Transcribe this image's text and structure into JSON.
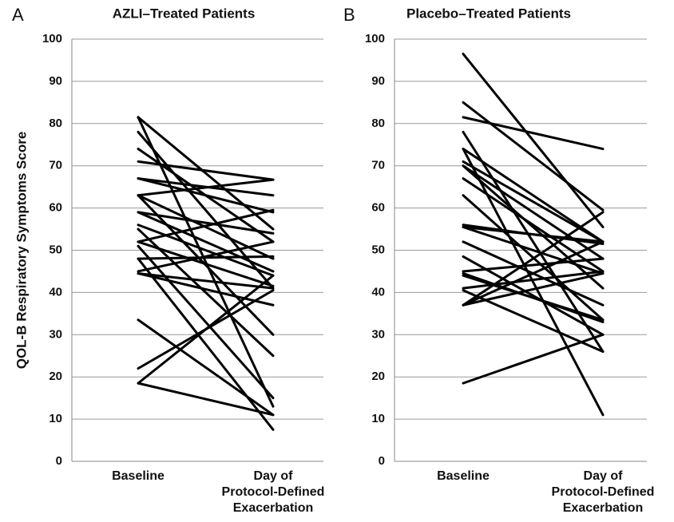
{
  "chart_data": [
    {
      "type": "line",
      "panel_label": "A",
      "title": "AZLI–Treated Patients",
      "ylabel": "QOL-B Respiratory Symptoms Score",
      "categories": [
        "Baseline",
        "Day of\nProtocol-Defined\nExacerbation"
      ],
      "ylim": [
        0,
        100
      ],
      "yticks": [
        0,
        10,
        20,
        30,
        40,
        50,
        60,
        70,
        80,
        90,
        100
      ],
      "grid": true,
      "color": "#000000",
      "series": [
        {
          "values": [
            81.5,
            55
          ]
        },
        {
          "values": [
            81.5,
            13
          ]
        },
        {
          "values": [
            78,
            41
          ]
        },
        {
          "values": [
            74,
            52
          ]
        },
        {
          "values": [
            71,
            66.7
          ]
        },
        {
          "values": [
            67,
            59
          ]
        },
        {
          "values": [
            67,
            63
          ]
        },
        {
          "values": [
            63,
            66.7
          ]
        },
        {
          "values": [
            63,
            48
          ]
        },
        {
          "values": [
            63,
            30
          ]
        },
        {
          "values": [
            59,
            54
          ]
        },
        {
          "values": [
            59,
            45
          ]
        },
        {
          "values": [
            56,
            44
          ]
        },
        {
          "values": [
            55,
            25
          ]
        },
        {
          "values": [
            52,
            59.5
          ]
        },
        {
          "values": [
            52,
            41.5
          ]
        },
        {
          "values": [
            51,
            15
          ]
        },
        {
          "values": [
            48,
            48.5
          ]
        },
        {
          "values": [
            48,
            7.5
          ]
        },
        {
          "values": [
            45,
            52
          ]
        },
        {
          "values": [
            44.5,
            41
          ]
        },
        {
          "values": [
            44.5,
            37
          ]
        },
        {
          "values": [
            33.5,
            11
          ]
        },
        {
          "values": [
            22,
            40.5
          ]
        },
        {
          "values": [
            18.5,
            44
          ]
        },
        {
          "values": [
            18.5,
            11
          ]
        }
      ]
    },
    {
      "type": "line",
      "panel_label": "B",
      "title": "Placebo–Treated Patients",
      "categories": [
        "Baseline",
        "Day of\nProtocol-Defined\nExacerbation"
      ],
      "ylim": [
        0,
        100
      ],
      "yticks": [
        0,
        10,
        20,
        30,
        40,
        50,
        60,
        70,
        80,
        90,
        100
      ],
      "grid": true,
      "color": "#000000",
      "series": [
        {
          "values": [
            96.5,
            55.5
          ]
        },
        {
          "values": [
            85,
            59.5
          ]
        },
        {
          "values": [
            81.5,
            74
          ]
        },
        {
          "values": [
            78,
            26
          ]
        },
        {
          "values": [
            74,
            52
          ]
        },
        {
          "values": [
            74,
            11
          ]
        },
        {
          "values": [
            71,
            52
          ]
        },
        {
          "values": [
            70,
            48
          ]
        },
        {
          "values": [
            70,
            41
          ]
        },
        {
          "values": [
            67,
            45
          ]
        },
        {
          "values": [
            63,
            33.5
          ]
        },
        {
          "values": [
            56,
            51.5
          ]
        },
        {
          "values": [
            55.5,
            52
          ]
        },
        {
          "values": [
            55.5,
            44.5
          ]
        },
        {
          "values": [
            52,
            37
          ]
        },
        {
          "values": [
            48.5,
            30
          ]
        },
        {
          "values": [
            45,
            48
          ]
        },
        {
          "values": [
            44.5,
            33
          ]
        },
        {
          "values": [
            44,
            33.5
          ]
        },
        {
          "values": [
            41,
            45
          ]
        },
        {
          "values": [
            40.5,
            26
          ]
        },
        {
          "values": [
            37,
            59
          ]
        },
        {
          "values": [
            37,
            44.5
          ]
        },
        {
          "values": [
            37,
            52
          ]
        },
        {
          "values": [
            18.5,
            30
          ]
        }
      ]
    }
  ]
}
